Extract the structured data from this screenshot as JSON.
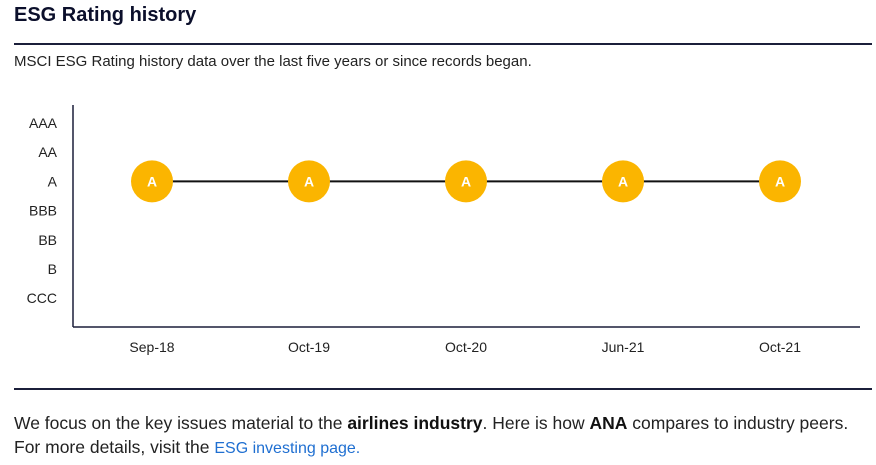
{
  "header": {
    "title": "ESG Rating history",
    "subtitle": "MSCI ESG Rating history data over the last five years or since records began."
  },
  "chart_data": {
    "type": "line",
    "title": "",
    "xlabel": "",
    "ylabel": "",
    "y_categories": [
      "AAA",
      "AA",
      "A",
      "BBB",
      "BB",
      "B",
      "CCC"
    ],
    "categories": [
      "Sep-18",
      "Oct-19",
      "Oct-20",
      "Jun-21",
      "Oct-21"
    ],
    "series": [
      {
        "values": [
          "A",
          "A",
          "A",
          "A",
          "A"
        ]
      }
    ],
    "marker_color": "#FBB500",
    "line_color": "#111111",
    "grid": false
  },
  "footer": {
    "text_1": "We focus on the key issues material to the ",
    "industry": "airlines industry",
    "text_2": ". Here is how ",
    "company": "ANA",
    "text_3": " compares to industry peers. For more details, visit the ",
    "link_label": "ESG investing page."
  }
}
